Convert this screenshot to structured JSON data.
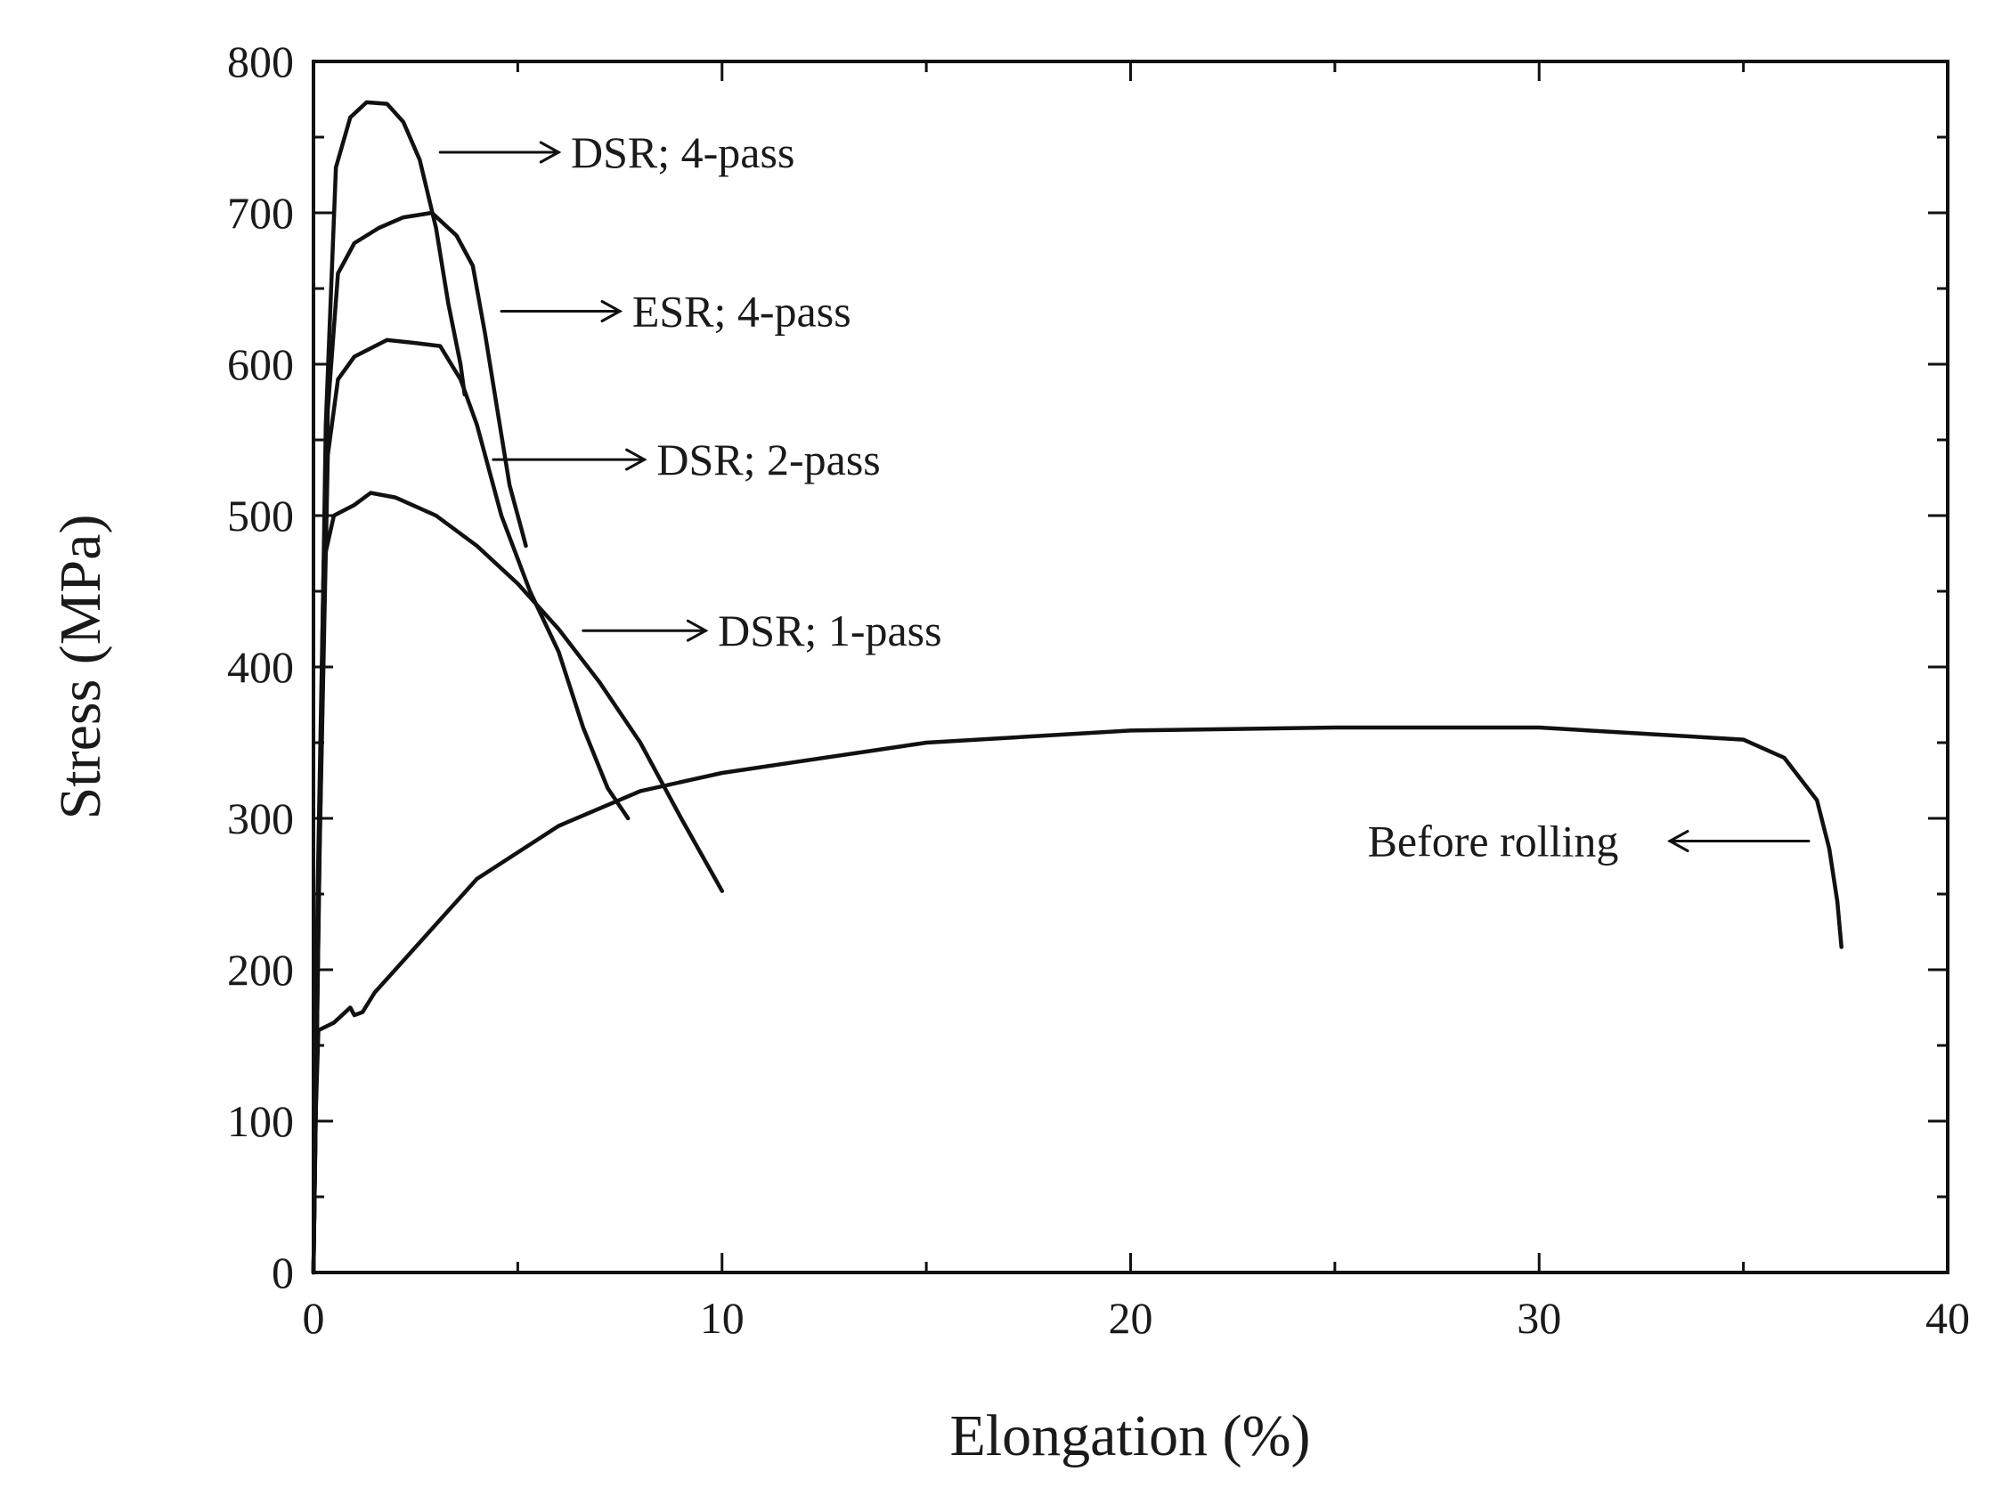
{
  "chart_data": {
    "type": "line",
    "title": "",
    "xlabel": "Elongation (%)",
    "ylabel": "Stress (MPa)",
    "xlim": [
      0,
      40
    ],
    "ylim": [
      0,
      800
    ],
    "x_ticks": [
      0,
      10,
      20,
      30,
      40
    ],
    "y_ticks": [
      0,
      100,
      200,
      300,
      400,
      500,
      600,
      700,
      800
    ],
    "grid": false,
    "legend": "none",
    "series": [
      {
        "name": "DSR; 4-pass",
        "points": [
          [
            0,
            0
          ],
          [
            0.15,
            300
          ],
          [
            0.3,
            560
          ],
          [
            0.55,
            730
          ],
          [
            0.9,
            763
          ],
          [
            1.3,
            773
          ],
          [
            1.8,
            772
          ],
          [
            2.2,
            760
          ],
          [
            2.6,
            735
          ],
          [
            3.0,
            690
          ],
          [
            3.3,
            640
          ],
          [
            3.6,
            600
          ],
          [
            3.7,
            580
          ]
        ]
      },
      {
        "name": "ESR; 4-pass",
        "points": [
          [
            0,
            0
          ],
          [
            0.15,
            280
          ],
          [
            0.35,
            570
          ],
          [
            0.6,
            660
          ],
          [
            1.0,
            680
          ],
          [
            1.6,
            690
          ],
          [
            2.2,
            697
          ],
          [
            2.9,
            700
          ],
          [
            3.5,
            685
          ],
          [
            3.9,
            665
          ],
          [
            4.2,
            620
          ],
          [
            4.5,
            570
          ],
          [
            4.8,
            520
          ],
          [
            5.1,
            490
          ],
          [
            5.2,
            480
          ]
        ]
      },
      {
        "name": "DSR; 2-pass",
        "points": [
          [
            0,
            0
          ],
          [
            0.15,
            280
          ],
          [
            0.35,
            540
          ],
          [
            0.6,
            590
          ],
          [
            1.0,
            605
          ],
          [
            1.8,
            616
          ],
          [
            2.5,
            614
          ],
          [
            3.1,
            612
          ],
          [
            3.6,
            590
          ],
          [
            4.0,
            560
          ],
          [
            4.6,
            500
          ],
          [
            5.3,
            450
          ],
          [
            6.0,
            410
          ],
          [
            6.6,
            360
          ],
          [
            7.2,
            320
          ],
          [
            7.7,
            300
          ]
        ]
      },
      {
        "name": "DSR; 1-pass",
        "points": [
          [
            0,
            0
          ],
          [
            0.1,
            250
          ],
          [
            0.25,
            470
          ],
          [
            0.5,
            500
          ],
          [
            1.0,
            507
          ],
          [
            1.4,
            515
          ],
          [
            2.0,
            512
          ],
          [
            3.0,
            500
          ],
          [
            4.0,
            480
          ],
          [
            5.0,
            455
          ],
          [
            6.0,
            425
          ],
          [
            7.0,
            390
          ],
          [
            8.0,
            350
          ],
          [
            9.0,
            300
          ],
          [
            10.0,
            252
          ]
        ]
      },
      {
        "name": "Before rolling",
        "points": [
          [
            0,
            0
          ],
          [
            0.05,
            100
          ],
          [
            0.12,
            160
          ],
          [
            0.5,
            165
          ],
          [
            0.9,
            175
          ],
          [
            1.0,
            170
          ],
          [
            1.2,
            172
          ],
          [
            1.5,
            185
          ],
          [
            2.0,
            200
          ],
          [
            3.0,
            230
          ],
          [
            4.0,
            260
          ],
          [
            6.0,
            295
          ],
          [
            8.0,
            318
          ],
          [
            10.0,
            330
          ],
          [
            15.0,
            350
          ],
          [
            20.0,
            358
          ],
          [
            25.0,
            360
          ],
          [
            30.0,
            360
          ],
          [
            35.0,
            352
          ],
          [
            36.0,
            340
          ],
          [
            36.8,
            312
          ],
          [
            37.1,
            280
          ],
          [
            37.3,
            245
          ],
          [
            37.4,
            215
          ]
        ]
      }
    ],
    "annotations": [
      {
        "text": "DSR; 4-pass",
        "arrow_from": [
          3.1,
          740
        ],
        "arrow_to": [
          6.0,
          740
        ],
        "label_at": [
          6.3,
          740
        ]
      },
      {
        "text": "ESR; 4-pass",
        "arrow_from": [
          4.6,
          635
        ],
        "arrow_to": [
          7.5,
          635
        ],
        "label_at": [
          7.8,
          635
        ]
      },
      {
        "text": "DSR; 2-pass",
        "arrow_from": [
          4.4,
          537
        ],
        "arrow_to": [
          8.1,
          537
        ],
        "label_at": [
          8.4,
          537
        ]
      },
      {
        "text": "DSR; 1-pass",
        "arrow_from": [
          6.6,
          424
        ],
        "arrow_to": [
          9.6,
          424
        ],
        "label_at": [
          9.9,
          424
        ]
      },
      {
        "text": "Before rolling",
        "arrow_from": [
          36.6,
          285
        ],
        "arrow_to": [
          33.2,
          285
        ],
        "label_at": [
          25.8,
          285
        ]
      }
    ]
  }
}
